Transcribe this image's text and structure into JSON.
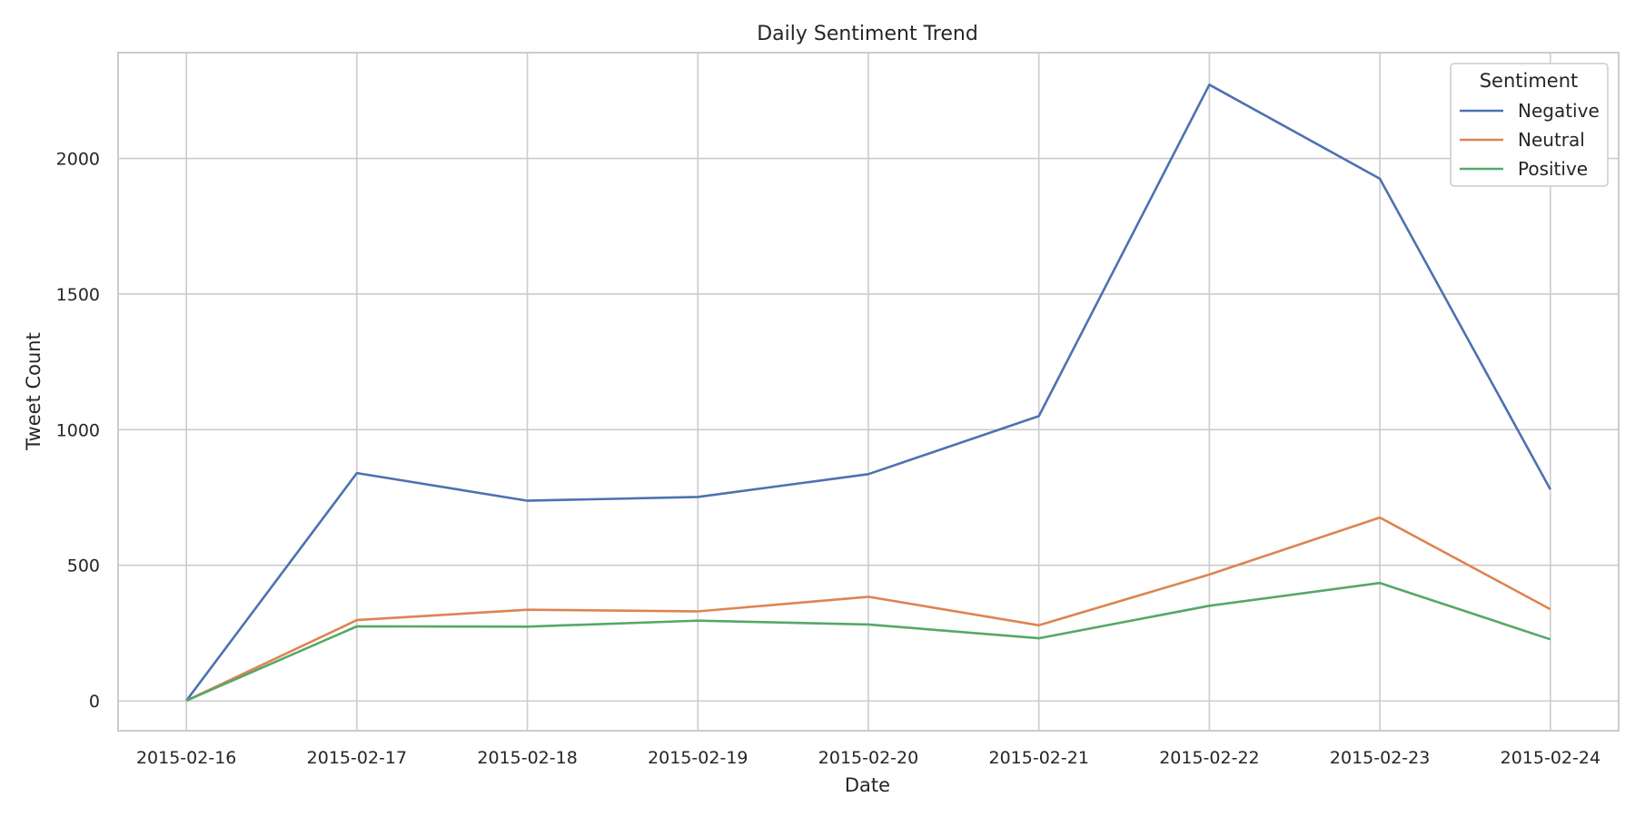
{
  "chart_data": {
    "type": "line",
    "title": "Daily Sentiment Trend",
    "xlabel": "Date",
    "ylabel": "Tweet Count",
    "x": [
      "2015-02-16",
      "2015-02-17",
      "2015-02-18",
      "2015-02-19",
      "2015-02-20",
      "2015-02-21",
      "2015-02-22",
      "2015-02-23",
      "2015-02-24"
    ],
    "yticks": [
      0,
      500,
      1000,
      1500,
      2000
    ],
    "ylim": [
      -110,
      2390
    ],
    "grid": true,
    "legend": {
      "title": "Sentiment",
      "placement": "top-right"
    },
    "series": [
      {
        "name": "Negative",
        "color": "#4c72b0",
        "values": [
          1,
          840,
          738,
          752,
          836,
          1050,
          2272,
          1925,
          780
        ]
      },
      {
        "name": "Neutral",
        "color": "#dd8452",
        "values": [
          1,
          298,
          336,
          330,
          384,
          279,
          466,
          676,
          338
        ]
      },
      {
        "name": "Positive",
        "color": "#55a868",
        "values": [
          1,
          275,
          274,
          296,
          282,
          231,
          351,
          435,
          227
        ]
      }
    ]
  }
}
